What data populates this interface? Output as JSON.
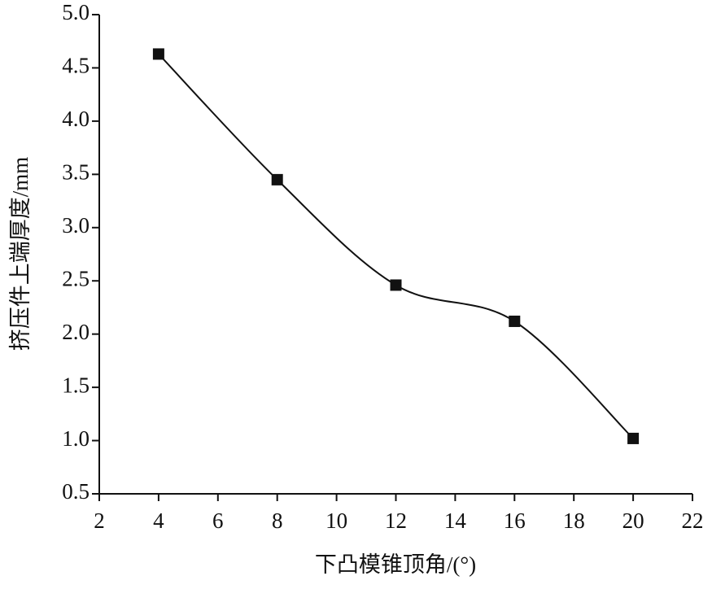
{
  "chart_data": {
    "type": "line-scatter",
    "x_label": "下凸模锥顶角/(°)",
    "y_label": "挤压件上端厚度/mm",
    "x": [
      4,
      8,
      12,
      16,
      20
    ],
    "y": [
      4.63,
      3.45,
      2.46,
      2.12,
      1.02
    ],
    "color": "#111111",
    "xlim": [
      2,
      22
    ],
    "xticks": [
      2,
      4,
      6,
      8,
      10,
      12,
      14,
      16,
      18,
      20,
      22
    ],
    "ylim": [
      0.5,
      5.0
    ],
    "yticks": [
      0.5,
      {
        "value": 1,
        "label": "1.0"
      },
      1.5,
      {
        "value": 2,
        "label": "2.0"
      },
      2.5,
      {
        "value": 3,
        "label": "3.0"
      },
      3.5,
      {
        "value": 4,
        "label": "4.0"
      },
      4.5,
      {
        "value": 5,
        "label": "5.0"
      }
    ]
  }
}
